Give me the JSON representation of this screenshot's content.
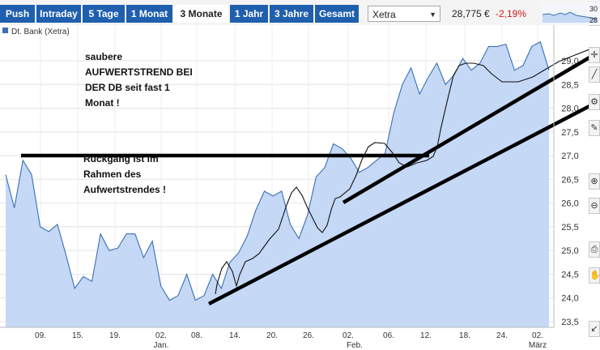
{
  "tabs": [
    {
      "label": "Push"
    },
    {
      "label": "Intraday"
    },
    {
      "label": "5 Tage"
    },
    {
      "label": "1 Monat"
    },
    {
      "label": "3 Monate",
      "active": true
    },
    {
      "label": "1 Jahr"
    },
    {
      "label": "3 Jahre"
    },
    {
      "label": "Gesamt"
    }
  ],
  "exchange": {
    "selected": "Xetra"
  },
  "quote": {
    "price": "28,775 €",
    "change": "-2,19%"
  },
  "mini_chart": {
    "labels": [
      "30",
      "28"
    ]
  },
  "legend": {
    "label": "Dt. Bank (Xetra)"
  },
  "annotations": {
    "note1": "saubere\nAUFWERTSTREND BEI\nDER DB seit fast 1\nMonat !",
    "note2": "Rückgang ist im\nRahmen des\nAufwertstrendes !"
  },
  "colors": {
    "tab_bg": "#1f5fae",
    "series": "#3a6fb5",
    "fill": "#c5d8f5",
    "change": "#d01818",
    "annot_line": "#000000"
  },
  "chart_data": {
    "type": "area",
    "yticks": [
      "29,0",
      "28,5",
      "28,0",
      "27,5",
      "27,0",
      "26,5",
      "26,0",
      "25,5",
      "25,0",
      "24,5",
      "24,0",
      "23,5"
    ],
    "ylim": [
      23.4,
      29.5
    ],
    "xtick_labels": [
      "09.",
      "15.",
      "19.",
      "02.",
      "08.",
      "14.",
      "20.",
      "26.",
      "02.",
      "06.",
      "12.",
      "18.",
      "24.",
      "02."
    ],
    "month_labels": [
      "Jan.",
      "Feb.",
      "März"
    ],
    "series": [
      {
        "values": [
          26.6,
          25.9,
          26.9,
          26.6,
          25.5,
          25.4,
          25.55,
          24.9,
          24.2,
          24.45,
          24.35,
          25.35,
          25.0,
          25.05,
          25.35,
          25.35,
          24.85,
          25.2,
          24.25,
          23.95,
          24.05,
          24.5,
          23.95,
          24.05,
          24.5,
          24.2,
          24.75,
          24.95,
          25.3,
          25.85,
          26.25,
          26.15,
          26.25,
          25.55,
          25.25,
          25.75,
          26.55,
          26.75,
          27.25,
          27.15,
          26.95,
          26.65,
          26.75,
          26.9,
          27.05,
          27.9,
          28.5,
          28.85,
          28.3,
          28.65,
          28.95,
          28.5,
          28.7,
          29.05,
          28.8,
          28.95,
          29.3,
          29.3,
          29.35,
          28.8,
          28.9,
          29.3,
          29.4,
          28.8
        ]
      }
    ]
  }
}
